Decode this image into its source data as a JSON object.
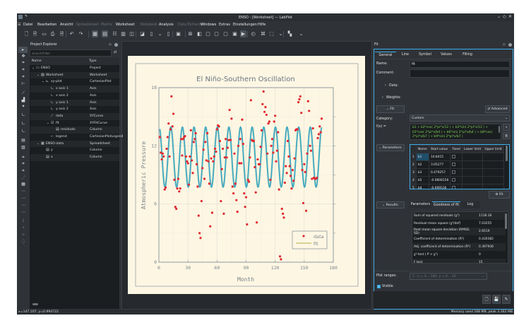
{
  "window": {
    "title": "ENSO - [Worksheet] — LabPlot",
    "controls": [
      "minimize",
      "restore",
      "close"
    ]
  },
  "menubar": [
    {
      "label": "Datei",
      "enabled": true
    },
    {
      "label": "Bearbeiten",
      "enabled": true
    },
    {
      "label": "Ansicht",
      "enabled": true
    },
    {
      "label": "Spreadsheet",
      "enabled": false
    },
    {
      "label": "Matrix",
      "enabled": false
    },
    {
      "label": "Worksheet",
      "enabled": true
    },
    {
      "label": "Notebook",
      "enabled": false
    },
    {
      "label": "Analysis",
      "enabled": true
    },
    {
      "label": "Data Extractor",
      "enabled": false
    },
    {
      "label": "Windows",
      "enabled": true
    },
    {
      "label": "Extras",
      "enabled": true
    },
    {
      "label": "Einstellungen",
      "enabled": true
    },
    {
      "label": "Hilfe",
      "enabled": true
    }
  ],
  "explorer": {
    "title": "Project Explorer",
    "search_placeholder": "Search/Filter",
    "col_name": "Name",
    "col_type": "Type",
    "rows": [
      {
        "name": "ENSO",
        "type": "Project",
        "level": 0,
        "icon": "project-icon",
        "expanded": true
      },
      {
        "name": "Worksheet",
        "type": "Worksheet",
        "level": 1,
        "icon": "worksheet-icon",
        "expanded": true
      },
      {
        "name": "xy-plot",
        "type": "CartesianPlot",
        "level": 2,
        "icon": "plot-icon",
        "expanded": true
      },
      {
        "name": "x axis 1",
        "type": "Axis",
        "level": 3,
        "icon": "axis-icon"
      },
      {
        "name": "x axis 2",
        "type": "Axis",
        "level": 3,
        "icon": "axis-icon"
      },
      {
        "name": "y axis 1",
        "type": "Axis",
        "level": 3,
        "icon": "axis-icon"
      },
      {
        "name": "y axis 2",
        "type": "Axis",
        "level": 3,
        "icon": "axis-icon"
      },
      {
        "name": "data",
        "type": "XYCurve",
        "level": 3,
        "icon": "curve-icon"
      },
      {
        "name": "fit",
        "type": "XYFitCurve",
        "level": 3,
        "icon": "fit-curve-icon",
        "expanded": true,
        "selected": true
      },
      {
        "name": "residuals",
        "type": "Column",
        "level": 4,
        "icon": "column-icon"
      },
      {
        "name": "legend",
        "type": "CartesianPlotLegend",
        "level": 3,
        "icon": "legend-icon"
      },
      {
        "name": "ENSO-data",
        "type": "Spreadsheet",
        "level": 1,
        "icon": "spreadsheet-icon",
        "expanded": true
      },
      {
        "name": "y",
        "type": "Column",
        "level": 2,
        "icon": "column-icon"
      },
      {
        "name": "x",
        "type": "Column",
        "level": 2,
        "icon": "column-icon"
      }
    ]
  },
  "fit": {
    "title": "Fit",
    "tabs": [
      "General",
      "Line",
      "Symbol",
      "Values",
      "Filling"
    ],
    "active_tab": "General",
    "name_label": "Name:",
    "name_value": "fit",
    "comment_label": "Comment:",
    "comment_value": "",
    "data_label": "Data:",
    "weights_label": "Weights:",
    "fit_section": "Fit:",
    "advanced": "Advanced",
    "category_label": "Category:",
    "category_value": "Custom",
    "fx_label": "f(x) =",
    "formula": "b1 + b2*cos( 2*pi*x/12 ) + b3*sin( 2*pi*x/12 ) + b5*cos( 2*pi*x/b4 ) + b6*sin( 2*pi*x/b4 ) + b8*cos( 2*pi*x/b7 ) + b9*sin( 2*pi*x/b7 )",
    "parameters_label": "Parameters:",
    "param_headers": [
      "Name",
      "Start value",
      "Fixed",
      "Lower limit",
      "Upper limit"
    ],
    "parameters": [
      {
        "i": "1",
        "name": "b1",
        "start": "10.8415",
        "fixed": false
      },
      {
        "i": "2",
        "name": "b2",
        "start": "3.05277",
        "fixed": false
      },
      {
        "i": "3",
        "name": "b3",
        "start": "0.479257",
        "fixed": false
      },
      {
        "i": "4",
        "name": "b5",
        "start": "-0.0808158",
        "fixed": false
      },
      {
        "i": "5",
        "name": "b4",
        "start": "-0.699536",
        "fixed": false
      }
    ],
    "fit_button": "Fit",
    "results_label": "Results:",
    "result_tabs": [
      "Parameters",
      "Goodness of fit",
      "Log"
    ],
    "active_result_tab": "Goodness of fit",
    "results": [
      {
        "k": "Sum of squared residuals (χ²)",
        "v": "1118.18"
      },
      {
        "k": "Residual mean square (χ²/dof)",
        "v": "7.03255"
      },
      {
        "k": "Root mean square deviation (RMSD, SD)",
        "v": "2.6519"
      },
      {
        "k": "Coefficient of determination (R²)",
        "v": "0.430382"
      },
      {
        "k": "Adj. coefficient of determination (R²)",
        "v": "0.397936"
      },
      {
        "k": "χ²-test ( P > χ²)",
        "v": "0"
      },
      {
        "k": "F test",
        "v": "15"
      }
    ],
    "plot_ranges_label": "Plot ranges:",
    "plot_ranges_value": "1 : x = 0 .. 180, y = 0 .. 18",
    "visible_label": "Visible",
    "visible": true
  },
  "status": {
    "left": "x=147.107, y=0.994722",
    "right": "Memory used 168 MB, peak 3.362 MB"
  },
  "colors": {
    "accent": "#3daee9",
    "data": "#e0282e",
    "fit": "#3aa8cc",
    "legend_fit": "#b5b040",
    "paper": "#fdf6e3"
  },
  "chart_data": {
    "type": "scatter",
    "title": "El Niño-Southern Oscillation",
    "xlabel": "Month",
    "ylabel": "Atmospheric Pressure",
    "xlim": [
      0,
      180
    ],
    "ylim": [
      0,
      18
    ],
    "xticks": [
      0,
      30,
      60,
      90,
      120,
      150,
      180
    ],
    "yticks": [
      0,
      6,
      12,
      18
    ],
    "grid": true,
    "legend": "bottom-right",
    "series": [
      {
        "name": "data",
        "kind": "scatter",
        "x_start": 1,
        "values": [
          12.9,
          11.3,
          10.6,
          11.2,
          10.9,
          7.5,
          7.7,
          11.7,
          12.9,
          14.3,
          10.9,
          13.7,
          17.1,
          14.0,
          15.3,
          8.5,
          5.7,
          5.5,
          7.6,
          8.6,
          7.3,
          7.6,
          12.7,
          11.0,
          12.7,
          12.9,
          13.0,
          10.9,
          10.4,
          10.2,
          8.0,
          10.9,
          13.6,
          10.5,
          9.2,
          12.4,
          12.7,
          13.3,
          10.1,
          7.8,
          4.8,
          3.0,
          2.5,
          6.3,
          9.7,
          11.6,
          8.6,
          12.4,
          10.5,
          13.3,
          10.4,
          8.1,
          3.7,
          10.7,
          5.1,
          10.4,
          10.9,
          11.7,
          11.4,
          13.7,
          14.1,
          14.0,
          12.5,
          6.3,
          9.6,
          11.7,
          5.0,
          10.8,
          12.7,
          10.8,
          11.8,
          12.6,
          15.7,
          12.6,
          14.8,
          7.8,
          7.1,
          11.2,
          8.1,
          6.4,
          5.2,
          12.0,
          10.2,
          12.7,
          10.2,
          14.7,
          12.2,
          7.1,
          5.7,
          6.7,
          3.9,
          8.5,
          8.3,
          10.8,
          16.7,
          12.6,
          12.5,
          12.5,
          9.8,
          7.2,
          4.1,
          10.6,
          10.1,
          10.1,
          11.9,
          13.6,
          16.3,
          17.6,
          15.5,
          16.0,
          15.2,
          11.2,
          14.3,
          14.5,
          8.5,
          12.0,
          12.7,
          11.3,
          14.5,
          15.1,
          10.4,
          11.5,
          13.4,
          7.5,
          0.6,
          0.3,
          5.5,
          5.0,
          4.6,
          8.2,
          9.9,
          9.2,
          12.5,
          10.9,
          9.9,
          8.9,
          7.6,
          9.5,
          8.4,
          10.7,
          13.6,
          13.7,
          13.7,
          16.5,
          16.8,
          17.1,
          15.4,
          9.5,
          6.1,
          10.1,
          9.3,
          5.3,
          11.2,
          16.6,
          15.6,
          12.0,
          11.5,
          8.6,
          13.8,
          8.7,
          8.6,
          8.6,
          8.7,
          12.8,
          13.2,
          14.0,
          13.4,
          14.8
        ]
      },
      {
        "name": "fit",
        "kind": "line",
        "model": "b1 + b2*cos(2*pi*x/12) + b3*sin(2*pi*x/12)",
        "b1": 10.8415,
        "b2": 3.05277,
        "b3": 0.479257
      }
    ]
  }
}
